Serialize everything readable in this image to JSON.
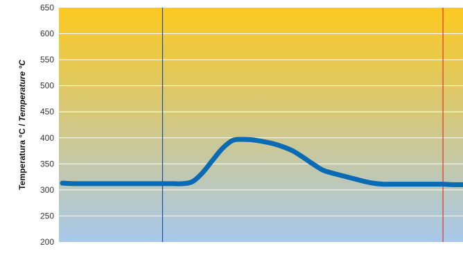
{
  "chart_data": {
    "type": "line",
    "ylabel_regular": "Temperatura °C / ",
    "ylabel_italic": "Temperature °C",
    "xlabel": "",
    "ylim": [
      200,
      650
    ],
    "yticks": [
      200,
      250,
      300,
      350,
      400,
      450,
      500,
      550,
      600,
      650
    ],
    "grid": true,
    "colors": {
      "background_top": "#fcc91e",
      "background_bottom": "#a7c8ec",
      "line": "#0a6ab3",
      "marker_left": "#1f4e9c",
      "marker_right": "#e0302a",
      "grid": "#ffffff"
    },
    "x": [
      0,
      5,
      10,
      20,
      30,
      40,
      50,
      55,
      60,
      65,
      70,
      75,
      80,
      85,
      90,
      95,
      100,
      105,
      110,
      115,
      120,
      125,
      130,
      135,
      140,
      145,
      150,
      155,
      160,
      165,
      170,
      175,
      180,
      185,
      190,
      195,
      200
    ],
    "series": [
      {
        "values": [
          313,
          312,
          312,
          312,
          312,
          312,
          312,
          312,
          312,
          316,
          333,
          357,
          380,
          395,
          397,
          396,
          393,
          389,
          383,
          375,
          363,
          350,
          338,
          332,
          327,
          322,
          317,
          313,
          311,
          311,
          311,
          311,
          311,
          311,
          311,
          310,
          310
        ]
      }
    ],
    "xlim": [
      0,
      200
    ],
    "vertical_markers": [
      {
        "x": 50,
        "color_key": "marker_left"
      },
      {
        "x": 190,
        "color_key": "marker_right"
      }
    ]
  }
}
